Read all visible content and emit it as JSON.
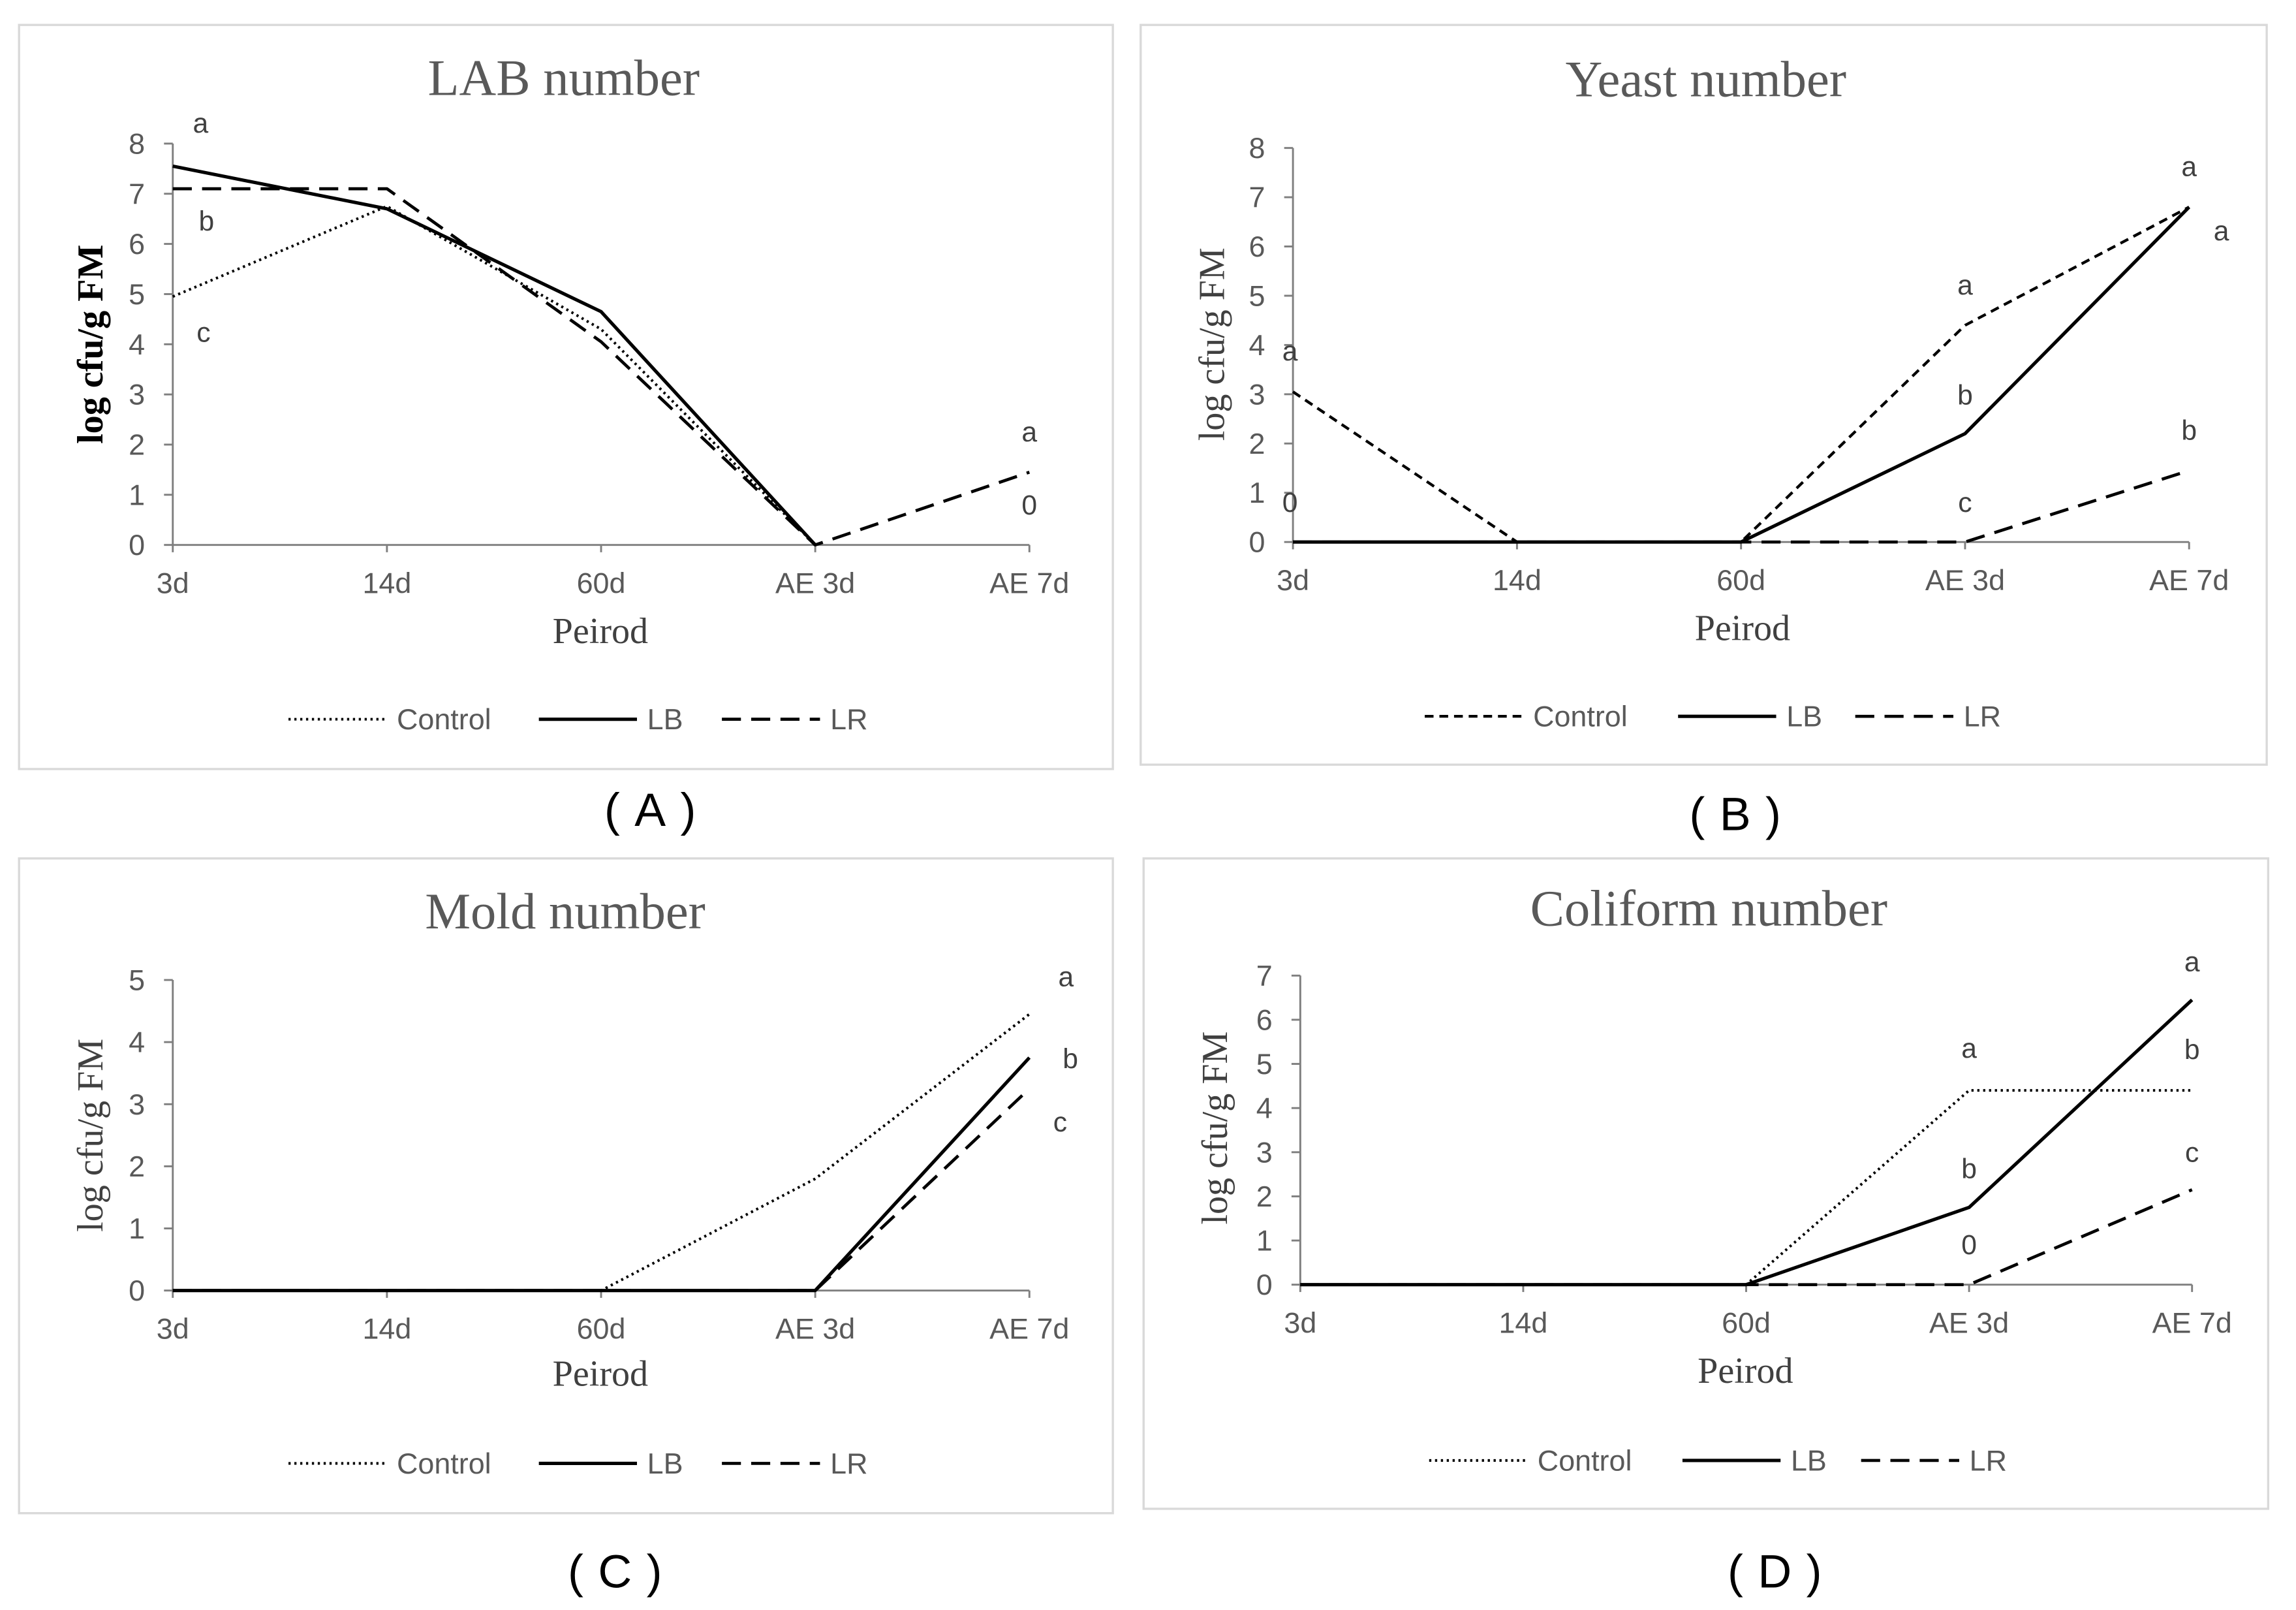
{
  "chart_data": [
    {
      "type": "line",
      "title": "LAB number",
      "xlabel": "Peirod",
      "ylabel": "log cfu/g FM",
      "caption": "(A)",
      "categories": [
        "3d",
        "14d",
        "60d",
        "AE 3d",
        "AE 7d"
      ],
      "ylim": [
        0,
        8
      ],
      "yticks": [
        0,
        1,
        2,
        3,
        4,
        5,
        6,
        7,
        8
      ],
      "series": [
        {
          "name": "Control",
          "values": [
            4.95,
            6.75,
            4.3,
            0,
            null
          ]
        },
        {
          "name": "LB",
          "values": [
            7.55,
            6.7,
            4.65,
            0,
            null
          ]
        },
        {
          "name": "LR",
          "values": [
            7.1,
            7.1,
            4.05,
            0,
            1.45
          ]
        }
      ],
      "annotations": [
        {
          "text": "a",
          "x": "3d",
          "y": 8.4
        },
        {
          "text": "b",
          "x": "3d",
          "y": 6.45
        },
        {
          "text": "c",
          "x": "3d",
          "y": 4.23
        },
        {
          "text": "a",
          "x": "AE 7d",
          "y": 2.25
        },
        {
          "text": "0",
          "x": "AE 7d",
          "y": 0.79
        }
      ]
    },
    {
      "type": "line",
      "title": "Yeast number",
      "xlabel": "Peirod",
      "ylabel": "log cfu/g FM",
      "caption": "(B)",
      "categories": [
        "3d",
        "14d",
        "60d",
        "AE 3d",
        "AE 7d"
      ],
      "ylim": [
        0,
        8
      ],
      "yticks": [
        0,
        1,
        2,
        3,
        4,
        5,
        6,
        7,
        8
      ],
      "series": [
        {
          "name": "Control",
          "values": [
            3.05,
            0,
            0,
            4.4,
            6.8
          ]
        },
        {
          "name": "LB",
          "values": [
            0,
            0,
            0,
            2.2,
            6.8
          ]
        },
        {
          "name": "LR",
          "values": [
            0,
            0,
            0,
            0,
            1.45
          ]
        }
      ],
      "annotations": [
        {
          "text": "a",
          "x": "3d",
          "y": 3.87
        },
        {
          "text": "0",
          "x": "3d",
          "y": 0.8
        },
        {
          "text": "a",
          "x": "AE 3d",
          "y": 5.21
        },
        {
          "text": "b",
          "x": "AE 3d",
          "y": 2.98
        },
        {
          "text": "c",
          "x": "AE 3d",
          "y": 0.8
        },
        {
          "text": "a",
          "x": "AE 7d",
          "y": 7.62
        },
        {
          "text": "a",
          "x": "AE 7d",
          "y": 6.31
        },
        {
          "text": "b",
          "x": "AE 7d",
          "y": 2.26
        }
      ]
    },
    {
      "type": "line",
      "title": "Mold number",
      "xlabel": "Peirod",
      "ylabel": "log cfu/g FM",
      "caption": "(C)",
      "categories": [
        "3d",
        "14d",
        "60d",
        "AE 3d",
        "AE 7d"
      ],
      "ylim": [
        0,
        5
      ],
      "yticks": [
        0,
        1,
        2,
        3,
        4,
        5
      ],
      "series": [
        {
          "name": "Control",
          "values": [
            0,
            0,
            0,
            1.8,
            4.45
          ]
        },
        {
          "name": "LB",
          "values": [
            0,
            0,
            0,
            0,
            3.75
          ]
        },
        {
          "name": "LR",
          "values": [
            0,
            0,
            0,
            0,
            3.25
          ]
        }
      ],
      "annotations": [
        {
          "text": "a",
          "x": "AE 7d",
          "y": 5.05
        },
        {
          "text": "b",
          "x": "AE 7d",
          "y": 3.73
        },
        {
          "text": "c",
          "x": "AE 7d",
          "y": 2.71
        }
      ]
    },
    {
      "type": "line",
      "title": "Coliform number",
      "xlabel": "Peirod",
      "ylabel": "log cfu/g FM",
      "caption": "(D)",
      "categories": [
        "3d",
        "14d",
        "60d",
        "AE 3d",
        "AE 7d"
      ],
      "ylim": [
        0,
        7
      ],
      "yticks": [
        0,
        1,
        2,
        3,
        4,
        5,
        6,
        7
      ],
      "series": [
        {
          "name": "Control",
          "values": [
            0,
            0,
            0,
            4.4,
            4.4
          ]
        },
        {
          "name": "LB",
          "values": [
            0,
            0,
            0,
            1.75,
            6.45
          ]
        },
        {
          "name": "LR",
          "values": [
            0,
            0,
            0,
            0,
            2.15
          ]
        }
      ],
      "annotations": [
        {
          "text": "a",
          "x": "AE 3d",
          "y": 5.35
        },
        {
          "text": "b",
          "x": "AE 3d",
          "y": 2.62
        },
        {
          "text": "0",
          "x": "AE 3d",
          "y": 0.9
        },
        {
          "text": "a",
          "x": "AE 7d",
          "y": 7.31
        },
        {
          "text": "b",
          "x": "AE 7d",
          "y": 5.32
        },
        {
          "text": "c",
          "x": "AE 7d",
          "y": 2.99
        }
      ]
    }
  ]
}
